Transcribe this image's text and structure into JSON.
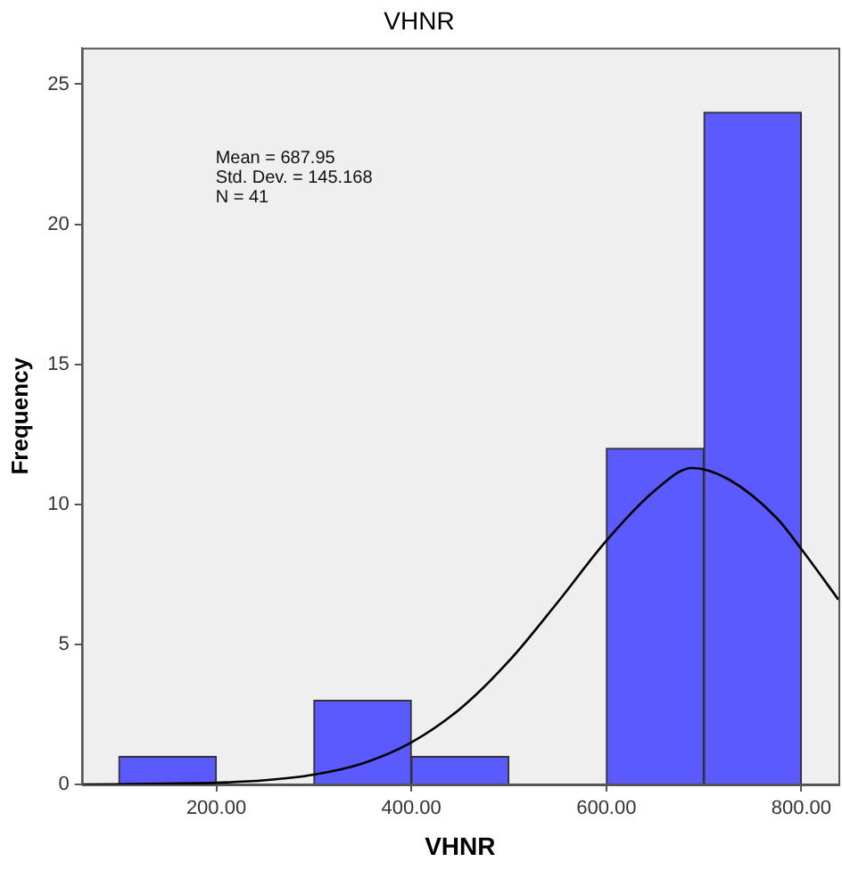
{
  "chart_data": {
    "type": "histogram",
    "title": "VHNR",
    "xlabel": "VHNR",
    "ylabel": "Frequency",
    "series": [
      {
        "bins": [
          100,
          200,
          300,
          400,
          500,
          600,
          700,
          800
        ],
        "values": [
          1,
          0,
          3,
          1,
          0,
          12,
          24
        ],
        "color": "#5a5aff"
      },
      {
        "type": "line",
        "x": [
          62,
          100,
          150,
          200,
          250,
          300,
          350,
          400,
          450,
          500,
          550,
          600,
          650,
          688,
          725,
          775,
          800,
          838
        ],
        "values": [
          0,
          0.01,
          0.03,
          0.06,
          0.15,
          0.35,
          0.75,
          1.5,
          2.7,
          4.4,
          6.5,
          8.7,
          10.5,
          11.3,
          10.9,
          9.5,
          8.4,
          6.6
        ],
        "color": "#000000",
        "marker": "none"
      }
    ],
    "xlim": [
      62,
      838
    ],
    "xticks": [
      {
        "value": 200,
        "label": "200.00"
      },
      {
        "value": 400,
        "label": "400.00"
      },
      {
        "value": 600,
        "label": "600.00"
      },
      {
        "value": 800,
        "label": "800.00"
      }
    ],
    "ylim": [
      0,
      26.3
    ],
    "yticks": [
      0,
      5,
      10,
      15,
      20,
      25
    ],
    "grid": false,
    "legend": false,
    "annotations": [
      "Mean = 687.95",
      "Std. Dev. = 145.168",
      "N = 41"
    ]
  }
}
